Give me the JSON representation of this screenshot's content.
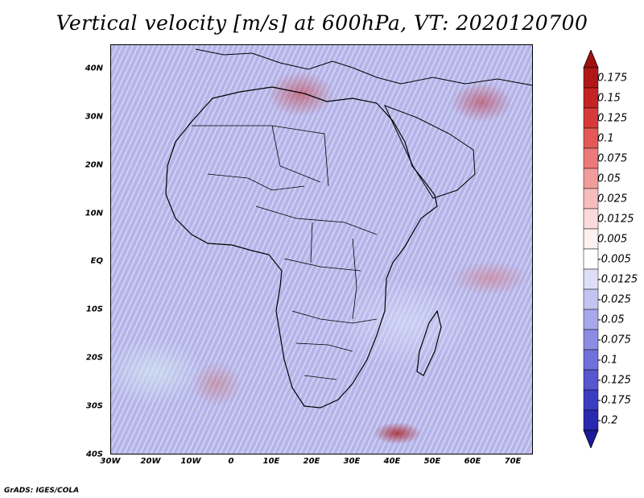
{
  "title": "Vertical velocity [m/s] at 600hPa, VT: 2020120700",
  "credit": "GrADS: IGES/COLA",
  "map": {
    "lon_range": [
      -30,
      75
    ],
    "lat_range": [
      -40,
      45
    ],
    "lat_ticks": [
      {
        "value": 40,
        "label": "40N"
      },
      {
        "value": 30,
        "label": "30N"
      },
      {
        "value": 20,
        "label": "20N"
      },
      {
        "value": 10,
        "label": "10N"
      },
      {
        "value": 0,
        "label": "EQ"
      },
      {
        "value": -10,
        "label": "10S"
      },
      {
        "value": -20,
        "label": "20S"
      },
      {
        "value": -30,
        "label": "30S"
      },
      {
        "value": -40,
        "label": "40S"
      }
    ],
    "lon_ticks": [
      {
        "value": -30,
        "label": "30W"
      },
      {
        "value": -20,
        "label": "20W"
      },
      {
        "value": -10,
        "label": "10W"
      },
      {
        "value": 0,
        "label": "0"
      },
      {
        "value": 10,
        "label": "10E"
      },
      {
        "value": 20,
        "label": "20E"
      },
      {
        "value": 30,
        "label": "30E"
      },
      {
        "value": 40,
        "label": "40E"
      },
      {
        "value": 50,
        "label": "50E"
      },
      {
        "value": 60,
        "label": "60E"
      },
      {
        "value": 70,
        "label": "70E"
      }
    ]
  },
  "colorbar": {
    "levels": [
      {
        "label": "0.175",
        "color": "#b01818"
      },
      {
        "label": "0.15",
        "color": "#c42424"
      },
      {
        "label": "0.125",
        "color": "#d73a3a"
      },
      {
        "label": "0.1",
        "color": "#e45858"
      },
      {
        "label": "0.075",
        "color": "#ec7a7a"
      },
      {
        "label": "0.05",
        "color": "#f29c9c"
      },
      {
        "label": "0.025",
        "color": "#f7bdbd"
      },
      {
        "label": "0.0125",
        "color": "#fadada"
      },
      {
        "label": "0.005",
        "color": "#fdf0f0"
      },
      {
        "label": "-0.005",
        "color": "#ffffff"
      },
      {
        "label": "-0.0125",
        "color": "#dedef8"
      },
      {
        "label": "-0.025",
        "color": "#c4c4f2"
      },
      {
        "label": "-0.05",
        "color": "#a8a8ec"
      },
      {
        "label": "-0.075",
        "color": "#8c8ce4"
      },
      {
        "label": "-0.1",
        "color": "#7070da"
      },
      {
        "label": "-0.125",
        "color": "#5656cf"
      },
      {
        "label": "-0.175",
        "color": "#3c3cc2"
      },
      {
        "label": "-0.2",
        "color": "#2828b0"
      }
    ],
    "top_arrow_color": "#a01010",
    "bottom_arrow_color": "#1a1a9a",
    "mid_color": "#ffffff"
  }
}
